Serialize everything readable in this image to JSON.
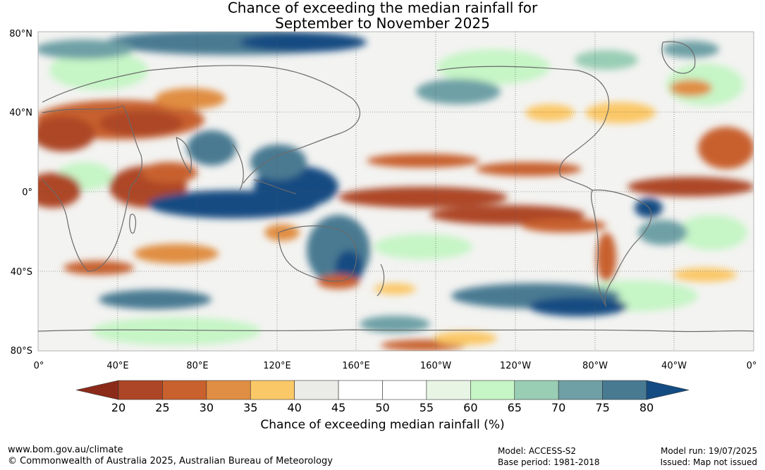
{
  "title": {
    "line1": "Chance of exceeding the median rainfall for",
    "line2": "September to November 2025"
  },
  "map": {
    "lat_labels": [
      "80°N",
      "40°N",
      "0°",
      "40°S",
      "80°S"
    ],
    "lon_labels": [
      "0°",
      "40°E",
      "80°E",
      "120°E",
      "160°E",
      "160°W",
      "120°W",
      "80°W",
      "40°W",
      "0°"
    ]
  },
  "colorbar": {
    "ticks": [
      "20",
      "25",
      "30",
      "35",
      "40",
      "45",
      "50",
      "55",
      "60",
      "65",
      "70",
      "75",
      "80"
    ],
    "low_color": "#8c2a1a",
    "high_color": "#134b82",
    "colors": [
      "#ad4626",
      "#c8612e",
      "#e08e43",
      "#fbc868",
      "#ebebe7",
      "#ffffff",
      "#ffffff",
      "#e8f5e5",
      "#c6f5c6",
      "#99cdb4",
      "#6ea0a6",
      "#487a92"
    ],
    "title": "Chance of exceeding median rainfall (%)"
  },
  "footer": {
    "url": "www.bom.gov.au/climate",
    "copyright": "© Commonwealth of Australia 2025, Australian Bureau of Meteorology",
    "model": "Model: ACCESS-S2",
    "base_period": "Base period: 1981-2018",
    "model_run": "Model run: 19/07/2025",
    "issued": "Issued: Map not issued"
  }
}
